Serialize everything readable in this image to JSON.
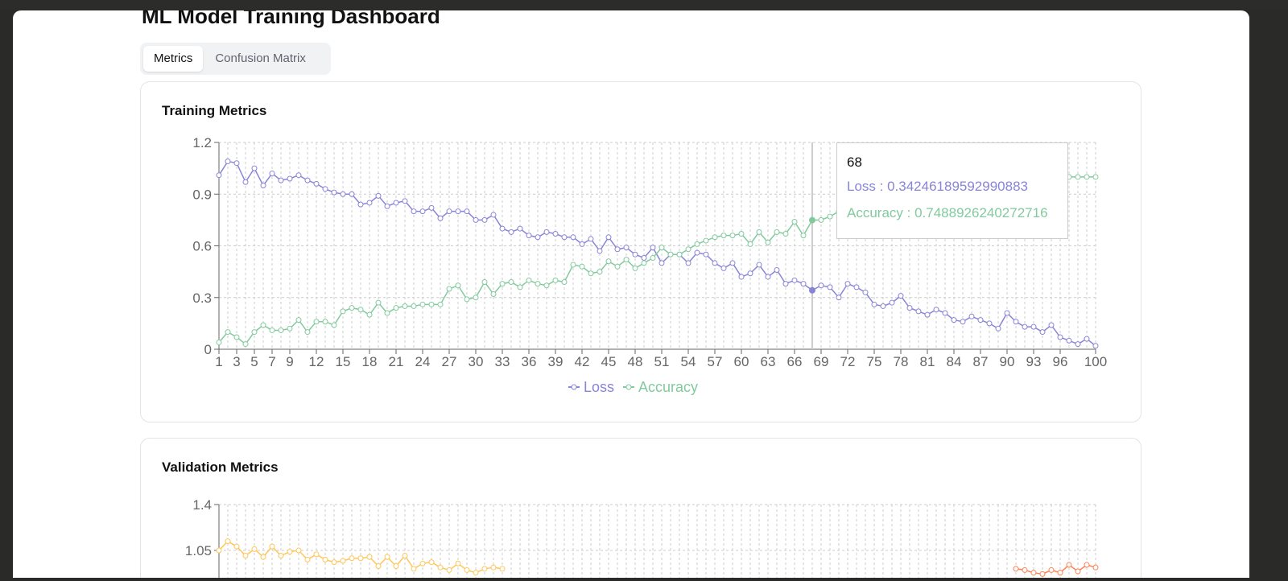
{
  "app": {
    "title": "ML Model Training Dashboard"
  },
  "tabs": [
    {
      "label": "Metrics",
      "active": true
    },
    {
      "label": "Confusion Matrix",
      "active": false
    }
  ],
  "training": {
    "title": "Training Metrics",
    "tooltip": {
      "label": "68",
      "loss_text": "Loss : 0.34246189592990883",
      "accuracy_text": "Accuracy : 0.7488926240272716"
    }
  },
  "validation": {
    "title": "Validation Metrics"
  },
  "colors": {
    "loss": "#8884d8",
    "accuracy": "#82ca9d",
    "val_loss": "#ffc658",
    "val_accuracy": "#ff7f50",
    "grid": "#cccccc",
    "axis": "#666666"
  },
  "chart_data": [
    {
      "type": "line",
      "title": "Training Metrics",
      "x": [
        1,
        2,
        3,
        4,
        5,
        6,
        7,
        8,
        9,
        10,
        11,
        12,
        13,
        14,
        15,
        16,
        17,
        18,
        19,
        20,
        21,
        22,
        23,
        24,
        25,
        26,
        27,
        28,
        29,
        30,
        31,
        32,
        33,
        34,
        35,
        36,
        37,
        38,
        39,
        40,
        41,
        42,
        43,
        44,
        45,
        46,
        47,
        48,
        49,
        50,
        51,
        52,
        53,
        54,
        55,
        56,
        57,
        58,
        59,
        60,
        61,
        62,
        63,
        64,
        65,
        66,
        67,
        68,
        69,
        70,
        71,
        72,
        73,
        74,
        75,
        76,
        77,
        78,
        79,
        80,
        81,
        82,
        83,
        84,
        85,
        86,
        87,
        88,
        89,
        90,
        91,
        92,
        93,
        94,
        95,
        96,
        97,
        98,
        99,
        100
      ],
      "x_ticks": [
        1,
        3,
        5,
        7,
        9,
        12,
        15,
        18,
        21,
        24,
        27,
        30,
        33,
        36,
        39,
        42,
        45,
        48,
        51,
        54,
        57,
        60,
        63,
        66,
        69,
        72,
        75,
        78,
        81,
        84,
        87,
        90,
        93,
        96,
        100
      ],
      "y_ticks": [
        "0",
        "0.3",
        "0.6",
        "0.9",
        "1.2"
      ],
      "ylim": [
        0,
        1.2
      ],
      "grid": true,
      "legend": "bottom-center",
      "series": [
        {
          "name": "Loss",
          "color": "#8884d8",
          "values": [
            1.01,
            1.09,
            1.08,
            0.97,
            1.05,
            0.95,
            1.02,
            0.98,
            0.99,
            1.01,
            0.98,
            0.96,
            0.93,
            0.91,
            0.9,
            0.9,
            0.84,
            0.85,
            0.89,
            0.83,
            0.85,
            0.86,
            0.8,
            0.8,
            0.82,
            0.76,
            0.8,
            0.8,
            0.8,
            0.75,
            0.75,
            0.78,
            0.7,
            0.68,
            0.7,
            0.66,
            0.65,
            0.68,
            0.67,
            0.65,
            0.65,
            0.61,
            0.64,
            0.57,
            0.65,
            0.58,
            0.59,
            0.55,
            0.53,
            0.59,
            0.5,
            0.55,
            0.55,
            0.5,
            0.56,
            0.55,
            0.5,
            0.47,
            0.5,
            0.42,
            0.44,
            0.49,
            0.42,
            0.46,
            0.38,
            0.4,
            0.38,
            0.342,
            0.37,
            0.36,
            0.3,
            0.38,
            0.36,
            0.33,
            0.26,
            0.25,
            0.27,
            0.31,
            0.24,
            0.22,
            0.2,
            0.23,
            0.21,
            0.17,
            0.16,
            0.19,
            0.17,
            0.15,
            0.12,
            0.21,
            0.16,
            0.13,
            0.13,
            0.1,
            0.14,
            0.07,
            0.05,
            0.03,
            0.06,
            0.02
          ]
        },
        {
          "name": "Accuracy",
          "color": "#82ca9d",
          "values": [
            0.04,
            0.1,
            0.07,
            0.03,
            0.1,
            0.14,
            0.11,
            0.11,
            0.12,
            0.17,
            0.1,
            0.16,
            0.16,
            0.14,
            0.22,
            0.24,
            0.23,
            0.2,
            0.27,
            0.21,
            0.24,
            0.25,
            0.25,
            0.26,
            0.26,
            0.26,
            0.35,
            0.37,
            0.29,
            0.3,
            0.39,
            0.32,
            0.38,
            0.39,
            0.36,
            0.4,
            0.38,
            0.37,
            0.4,
            0.39,
            0.49,
            0.48,
            0.44,
            0.45,
            0.51,
            0.48,
            0.52,
            0.47,
            0.5,
            0.53,
            0.59,
            0.55,
            0.55,
            0.58,
            0.61,
            0.63,
            0.65,
            0.66,
            0.66,
            0.67,
            0.61,
            0.68,
            0.62,
            0.68,
            0.67,
            0.74,
            0.66,
            0.749,
            0.75,
            0.77,
            0.8,
            0.82,
            0.84,
            0.85,
            0.86,
            0.88,
            0.89,
            0.9,
            0.91,
            0.92,
            0.93,
            0.94,
            0.94,
            0.95,
            0.96,
            0.96,
            0.97,
            0.97,
            0.98,
            0.98,
            0.99,
            0.99,
            0.99,
            1.0,
            1.0,
            1.0,
            1.0,
            1.0,
            1.0,
            1.0
          ]
        }
      ],
      "active_x": 68
    },
    {
      "type": "line",
      "title": "Validation Metrics",
      "y_ticks": [
        "1.05",
        "1.4"
      ],
      "grid": true,
      "series": [
        {
          "color": "#ffc658",
          "values": [
            1.05,
            1.12,
            1.08,
            1.01,
            1.06,
            1.0,
            1.08,
            1.01,
            1.04,
            1.05,
            0.98,
            1.02,
            0.98,
            0.96,
            0.97,
            0.99,
            0.99,
            1.0,
            0.93,
            1.0,
            0.93,
            1.01,
            0.91,
            0.95,
            0.96,
            0.92,
            0.9,
            0.95,
            0.9,
            0.88,
            0.91,
            0.92,
            0.91
          ]
        },
        {
          "color": "#ff7f50",
          "values": [
            0.91,
            0.9,
            0.88,
            0.87,
            0.9,
            0.88,
            0.94,
            0.89,
            0.94,
            0.92
          ]
        }
      ]
    }
  ]
}
